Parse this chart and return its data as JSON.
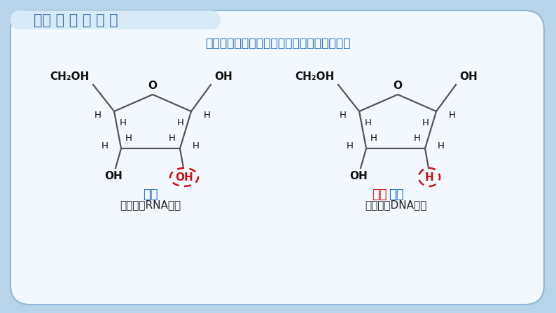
{
  "bg_color": "#b8d4e8",
  "card_color": "#f2f8fd",
  "title": "一、 核 酸 的 组 成",
  "title_color": "#3a6db5",
  "subtitle": "两种戊糖的区别是什么？他们名称的由来是？",
  "subtitle_color": "#1a6abf",
  "label1": "核糖",
  "label1_color": "#1a6abf",
  "label1_sub": "（存在于RNA中）",
  "label1_sub_color": "#222222",
  "label2_red": "脱氧",
  "label2_blue": "核糖",
  "label2_red_color": "#cc1111",
  "label2_blue_color": "#1a6abf",
  "label2_sub": "（存在于DNA中）",
  "label2_sub_color": "#222222",
  "dashed_circle_color": "#cc1111",
  "ring_line_color": "#555555",
  "text_color": "#111111",
  "grid_color": "#a0c8e0"
}
